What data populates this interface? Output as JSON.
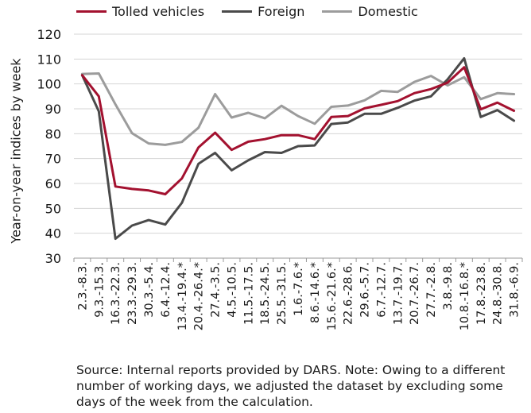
{
  "chart_data": {
    "type": "line",
    "title": "",
    "xlabel": "",
    "ylabel": "Year-on-year indices by week",
    "ylim": [
      30,
      120
    ],
    "yticks": [
      30,
      40,
      50,
      60,
      70,
      80,
      90,
      100,
      110,
      120
    ],
    "grid": "horizontal",
    "legend_position": "top",
    "categories": [
      "2.3.-8.3.",
      "9.3.-15.3.",
      "16.3.-22.3.",
      "23.3.-29.3.",
      "30.3.-5.4.",
      "6.4.-12.4.",
      "13.4.-19.4.*",
      "20.4.-26.4.*",
      "27.4.-3.5.",
      "4.5.-10.5.",
      "11.5.-17.5.",
      "18.5.-24.5.",
      "25.5.-31.5.",
      "1.6.-7.6.*",
      "8.6.-14.6.*",
      "15.6.-21.6.*",
      "22.6.-28.6.",
      "29.6.-5.7.",
      "6.7.-12.7.",
      "13.7.-19.7.",
      "20.7.-26.7.",
      "27.7.-2.8.",
      "3.8.-9.8.",
      "10.8.-16.8.*",
      "17.8.-23.8.",
      "24.8.-30.8.",
      "31.8.-6.9."
    ],
    "series": [
      {
        "name": "Tolled vehicles",
        "color": "#a3112f",
        "values": [
          103.5,
          95,
          58.8,
          57.8,
          57.2,
          55.7,
          62,
          74.5,
          80.4,
          73.5,
          76.8,
          77.8,
          79.4,
          79.4,
          77.8,
          86.7,
          87.1,
          90.2,
          91.6,
          93.1,
          96.3,
          97.9,
          100.5,
          106.7,
          89.8,
          92.5,
          89.2
        ]
      },
      {
        "name": "Foreign",
        "color": "#4a4a4a",
        "values": [
          103.5,
          89,
          37.8,
          43.1,
          45.3,
          43.5,
          52.2,
          67.9,
          72.3,
          65.3,
          69.3,
          72.6,
          72.3,
          75,
          75.3,
          83.9,
          84.5,
          88,
          88,
          90.4,
          93.3,
          95,
          101.8,
          110.3,
          86.7,
          89.5,
          85.2
        ]
      },
      {
        "name": "Domestic",
        "color": "#9c9c9c",
        "values": [
          104,
          104.2,
          91.8,
          80.2,
          76.1,
          75.5,
          76.7,
          82.4,
          95.9,
          86.5,
          88.4,
          86.2,
          91.2,
          87.1,
          84,
          90.8,
          91.3,
          93.4,
          97.2,
          96.8,
          100.8,
          103.2,
          99.4,
          102.7,
          93.9,
          96.3,
          95.9
        ]
      }
    ]
  },
  "source_text": "Source: Internal reports provided by DARS. Note: Owing to a different number of working days, we adjusted the dataset by excluding some days of the week from the calculation."
}
